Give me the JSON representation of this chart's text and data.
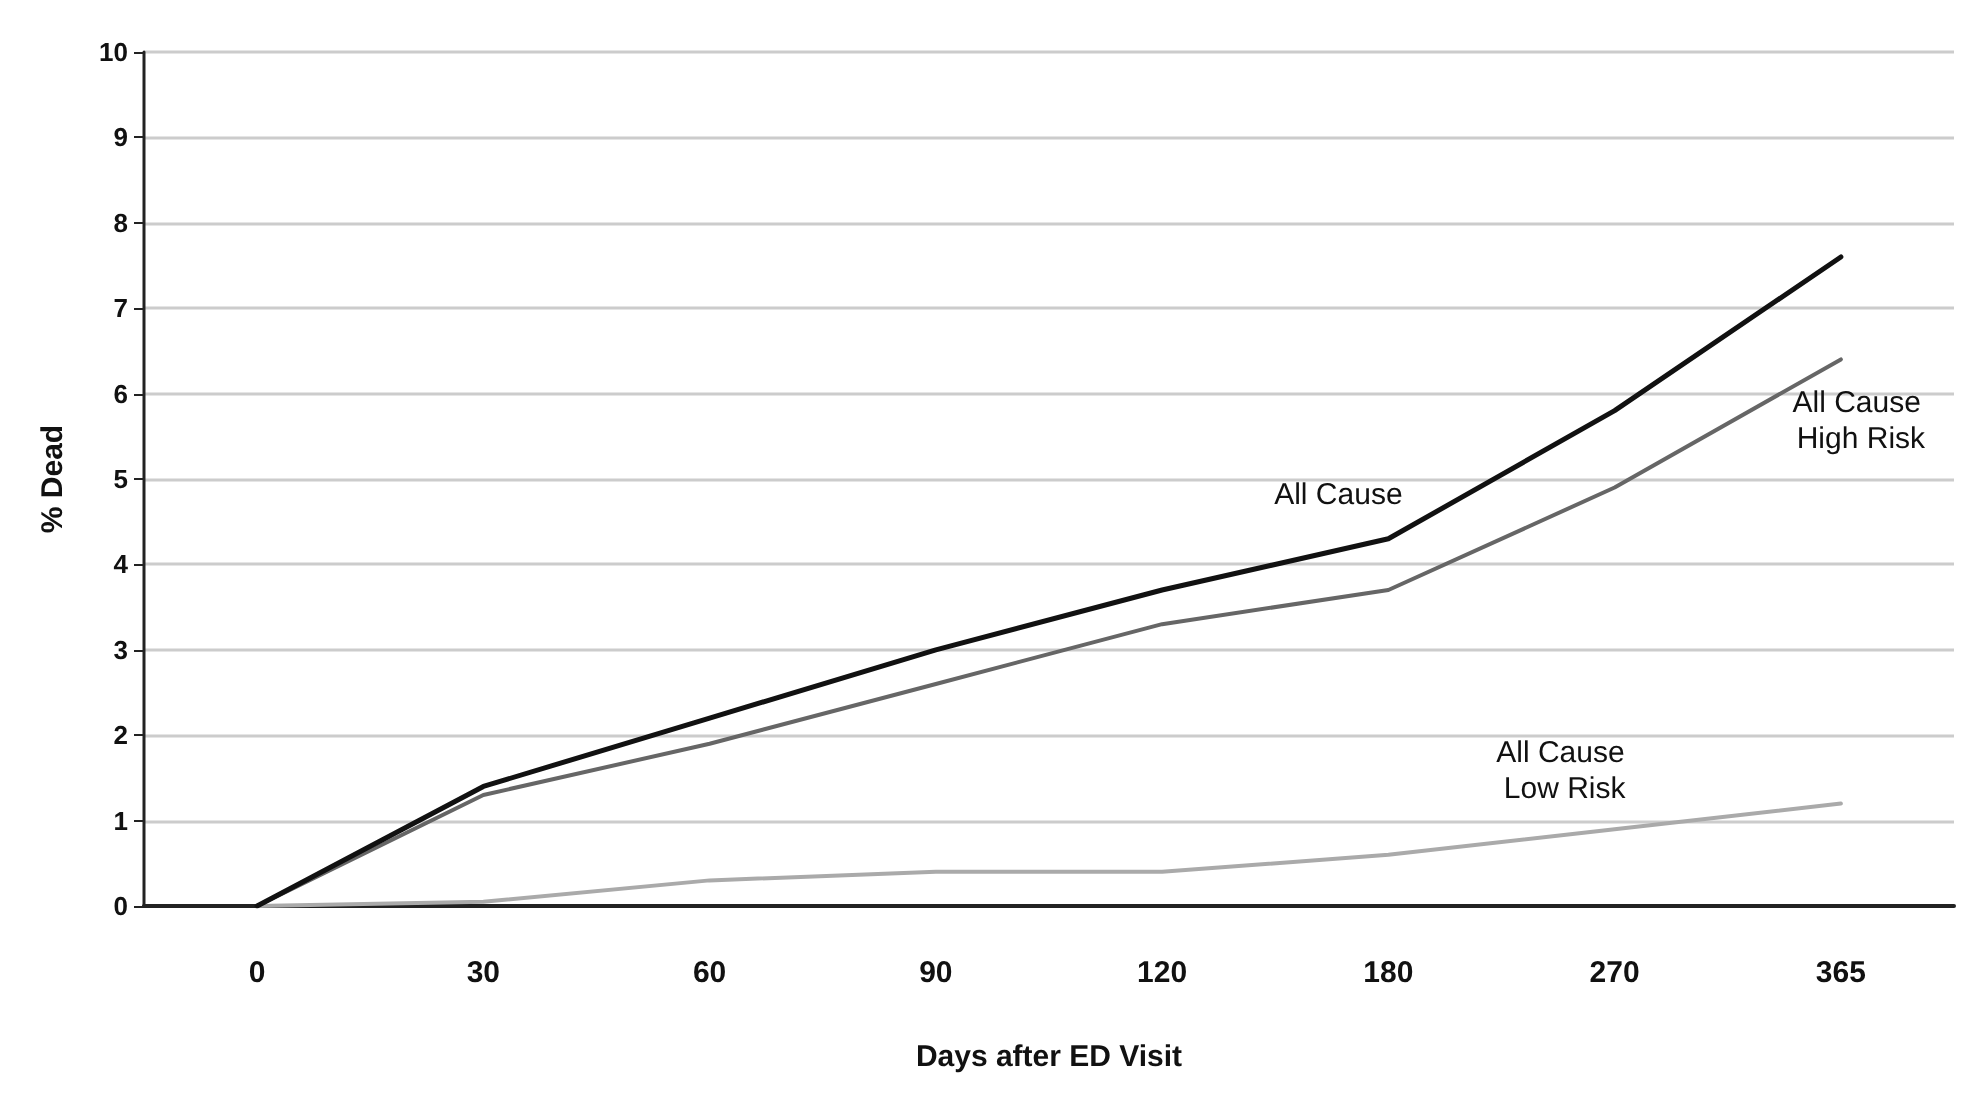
{
  "chart_data": {
    "type": "line",
    "xlabel": "Days after ED Visit",
    "ylabel": "% Dead",
    "categories": [
      "0",
      "30",
      "60",
      "90",
      "120",
      "180",
      "270",
      "365"
    ],
    "series": [
      {
        "name": "All Cause",
        "color": "#111111",
        "values": [
          0,
          1.4,
          2.2,
          3.0,
          3.7,
          4.3,
          5.8,
          7.6
        ]
      },
      {
        "name": "All Cause High Risk",
        "color": "#666666",
        "values": [
          0,
          1.3,
          1.9,
          2.6,
          3.3,
          3.7,
          4.9,
          6.4
        ]
      },
      {
        "name": "All Cause Low Risk",
        "color": "#aaaaaa",
        "values": [
          0,
          0.05,
          0.3,
          0.4,
          0.4,
          0.6,
          0.9,
          1.2
        ]
      }
    ],
    "ylim": [
      0,
      10
    ],
    "yticks": [
      0,
      1,
      2,
      3,
      4,
      5,
      6,
      7,
      8,
      9,
      10
    ],
    "grid": "y",
    "legend": false,
    "marker": "none",
    "line_style": "solid"
  }
}
